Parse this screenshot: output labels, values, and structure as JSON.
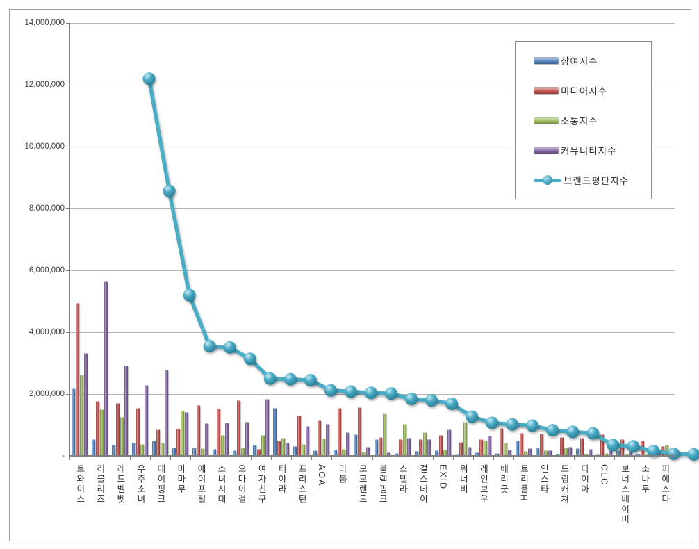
{
  "chart_data": {
    "type": "bar+line",
    "title": "",
    "xlabel": "",
    "ylabel": "",
    "ylim": [
      0,
      14000000
    ],
    "y_step": 2000000,
    "y_zero_label": "-",
    "grid": true,
    "legend_position": "top-right",
    "categories": [
      "트와이스",
      "러블리즈",
      "레드벨벳",
      "우주소녀",
      "에이핑크",
      "마마무",
      "에이프릴",
      "소녀시대",
      "오마이걸",
      "여자친구",
      "티아라",
      "프리스틴",
      "AOA",
      "라붐",
      "모모랜드",
      "블랙핑크",
      "스텔라",
      "걸스데이",
      "EXID",
      "워너비",
      "레인보우",
      "베리굿",
      "트리플H",
      "인스타",
      "드림캐쳐",
      "다이아",
      "CLC",
      "보너스베이비",
      "소나무",
      "피에스타"
    ],
    "series": [
      {
        "name": "참여지수",
        "type": "bar",
        "color": "#4F81BD",
        "values": [
          2190000,
          550000,
          350000,
          430000,
          490000,
          280000,
          270000,
          230000,
          170000,
          360000,
          1540000,
          310000,
          170000,
          210000,
          700000,
          530000,
          90000,
          150000,
          180000,
          50000,
          110000,
          100000,
          490000,
          270000,
          70000,
          250000,
          40000,
          170000,
          70000,
          130000
        ]
      },
      {
        "name": "미디어지수",
        "type": "bar",
        "color": "#C0504D",
        "values": [
          4940000,
          1780000,
          1700000,
          1550000,
          860000,
          870000,
          1650000,
          1520000,
          1800000,
          230000,
          500000,
          1310000,
          1150000,
          1540000,
          1570000,
          610000,
          550000,
          530000,
          680000,
          450000,
          550000,
          900000,
          750000,
          720000,
          600000,
          580000,
          700000,
          550000,
          490000,
          320000
        ]
      },
      {
        "name": "소통지수",
        "type": "bar",
        "color": "#9BBB59",
        "values": [
          2620000,
          1510000,
          1250000,
          380000,
          430000,
          1470000,
          250000,
          680000,
          280000,
          680000,
          580000,
          380000,
          570000,
          220000,
          140000,
          1360000,
          1040000,
          770000,
          210000,
          1100000,
          500000,
          430000,
          150000,
          170000,
          270000,
          60000,
          80000,
          70000,
          50000,
          370000
        ]
      },
      {
        "name": "커뮤니티지수",
        "type": "bar",
        "color": "#8064A2",
        "values": [
          3330000,
          5640000,
          2920000,
          2300000,
          2790000,
          1420000,
          1060000,
          1070000,
          1110000,
          1840000,
          420000,
          970000,
          1040000,
          770000,
          300000,
          120000,
          590000,
          530000,
          860000,
          290000,
          660000,
          200000,
          250000,
          170000,
          300000,
          230000,
          170000,
          130000,
          300000,
          190000
        ]
      },
      {
        "name": "브랜드평판지수",
        "type": "line",
        "color": "#4BACC6",
        "values": [
          12940000,
          9310000,
          5940000,
          4290000,
          4250000,
          3880000,
          3240000,
          3220000,
          3190000,
          2860000,
          2820000,
          2780000,
          2760000,
          2580000,
          2540000,
          2430000,
          2010000,
          1810000,
          1760000,
          1720000,
          1570000,
          1520000,
          1470000,
          1090000,
          1050000,
          900000,
          810000,
          790000,
          770000,
          760000
        ]
      }
    ]
  }
}
